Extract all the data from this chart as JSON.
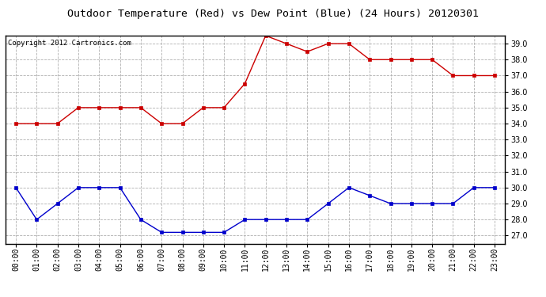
{
  "title": "Outdoor Temperature (Red) vs Dew Point (Blue) (24 Hours) 20120301",
  "copyright_text": "Copyright 2012 Cartronics.com",
  "hours": [
    0,
    1,
    2,
    3,
    4,
    5,
    6,
    7,
    8,
    9,
    10,
    11,
    12,
    13,
    14,
    15,
    16,
    17,
    18,
    19,
    20,
    21,
    22,
    23
  ],
  "temp_red": [
    34.0,
    34.0,
    34.0,
    35.0,
    35.0,
    35.0,
    35.0,
    34.0,
    34.0,
    35.0,
    35.0,
    36.5,
    39.5,
    39.0,
    38.5,
    39.0,
    39.0,
    38.0,
    38.0,
    38.0,
    38.0,
    37.0,
    37.0,
    37.0
  ],
  "dew_blue": [
    30.0,
    28.0,
    29.0,
    30.0,
    30.0,
    30.0,
    28.0,
    27.2,
    27.2,
    27.2,
    27.2,
    28.0,
    28.0,
    28.0,
    28.0,
    29.0,
    30.0,
    29.5,
    29.0,
    29.0,
    29.0,
    29.0,
    30.0,
    30.0
  ],
  "red_color": "#cc0000",
  "blue_color": "#0000cc",
  "bg_color": "#ffffff",
  "grid_color": "#b0b0b0",
  "ylim_min": 26.5,
  "ylim_max": 39.5,
  "yticks": [
    27.0,
    28.0,
    29.0,
    30.0,
    31.0,
    32.0,
    33.0,
    34.0,
    35.0,
    36.0,
    37.0,
    38.0,
    39.0
  ],
  "title_fontsize": 9.5,
  "copyright_fontsize": 6.5,
  "tick_label_fontsize": 7
}
